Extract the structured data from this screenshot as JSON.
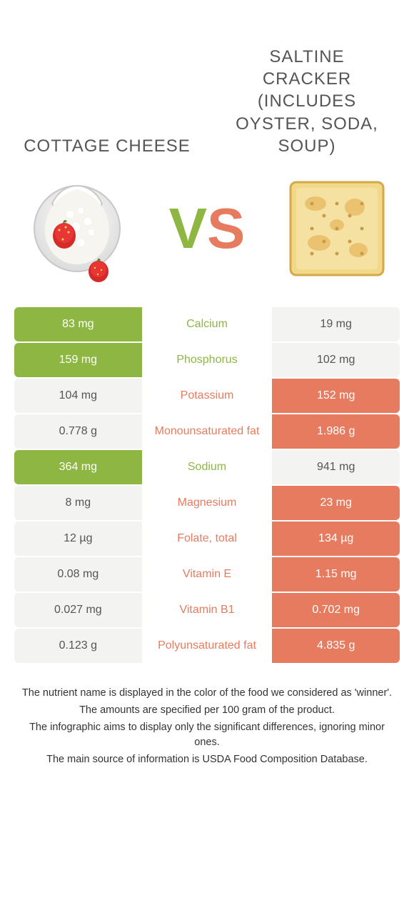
{
  "colors": {
    "food1": "#8eb642",
    "food2": "#e77b5f",
    "neutral": "#f3f3f1"
  },
  "vs": {
    "v": "V",
    "s": "S"
  },
  "food1": {
    "title": "COTTAGE CHEESE"
  },
  "food2": {
    "title": "SALTINE CRACKER (INCLUDES OYSTER, SODA, SOUP)"
  },
  "rows": [
    {
      "nutrient": "Calcium",
      "left": "83 mg",
      "right": "19 mg",
      "winner": "food1"
    },
    {
      "nutrient": "Phosphorus",
      "left": "159 mg",
      "right": "102 mg",
      "winner": "food1"
    },
    {
      "nutrient": "Potassium",
      "left": "104 mg",
      "right": "152 mg",
      "winner": "food2"
    },
    {
      "nutrient": "Monounsaturated fat",
      "left": "0.778 g",
      "right": "1.986 g",
      "winner": "food2"
    },
    {
      "nutrient": "Sodium",
      "left": "364 mg",
      "right": "941 mg",
      "winner": "food1"
    },
    {
      "nutrient": "Magnesium",
      "left": "8 mg",
      "right": "23 mg",
      "winner": "food2"
    },
    {
      "nutrient": "Folate, total",
      "left": "12 µg",
      "right": "134 µg",
      "winner": "food2"
    },
    {
      "nutrient": "Vitamin E",
      "left": "0.08 mg",
      "right": "1.15 mg",
      "winner": "food2"
    },
    {
      "nutrient": "Vitamin B1",
      "left": "0.027 mg",
      "right": "0.702 mg",
      "winner": "food2"
    },
    {
      "nutrient": "Polyunsaturated fat",
      "left": "0.123 g",
      "right": "4.835 g",
      "winner": "food2"
    }
  ],
  "footer": {
    "line1": "The nutrient name is displayed in the color of the food we considered as 'winner'.",
    "line2": "The amounts are specified per 100 gram of the product.",
    "line3": "The infographic aims to display only the significant differences, ignoring minor ones.",
    "line4": "The main source of information is USDA Food Composition Database."
  }
}
